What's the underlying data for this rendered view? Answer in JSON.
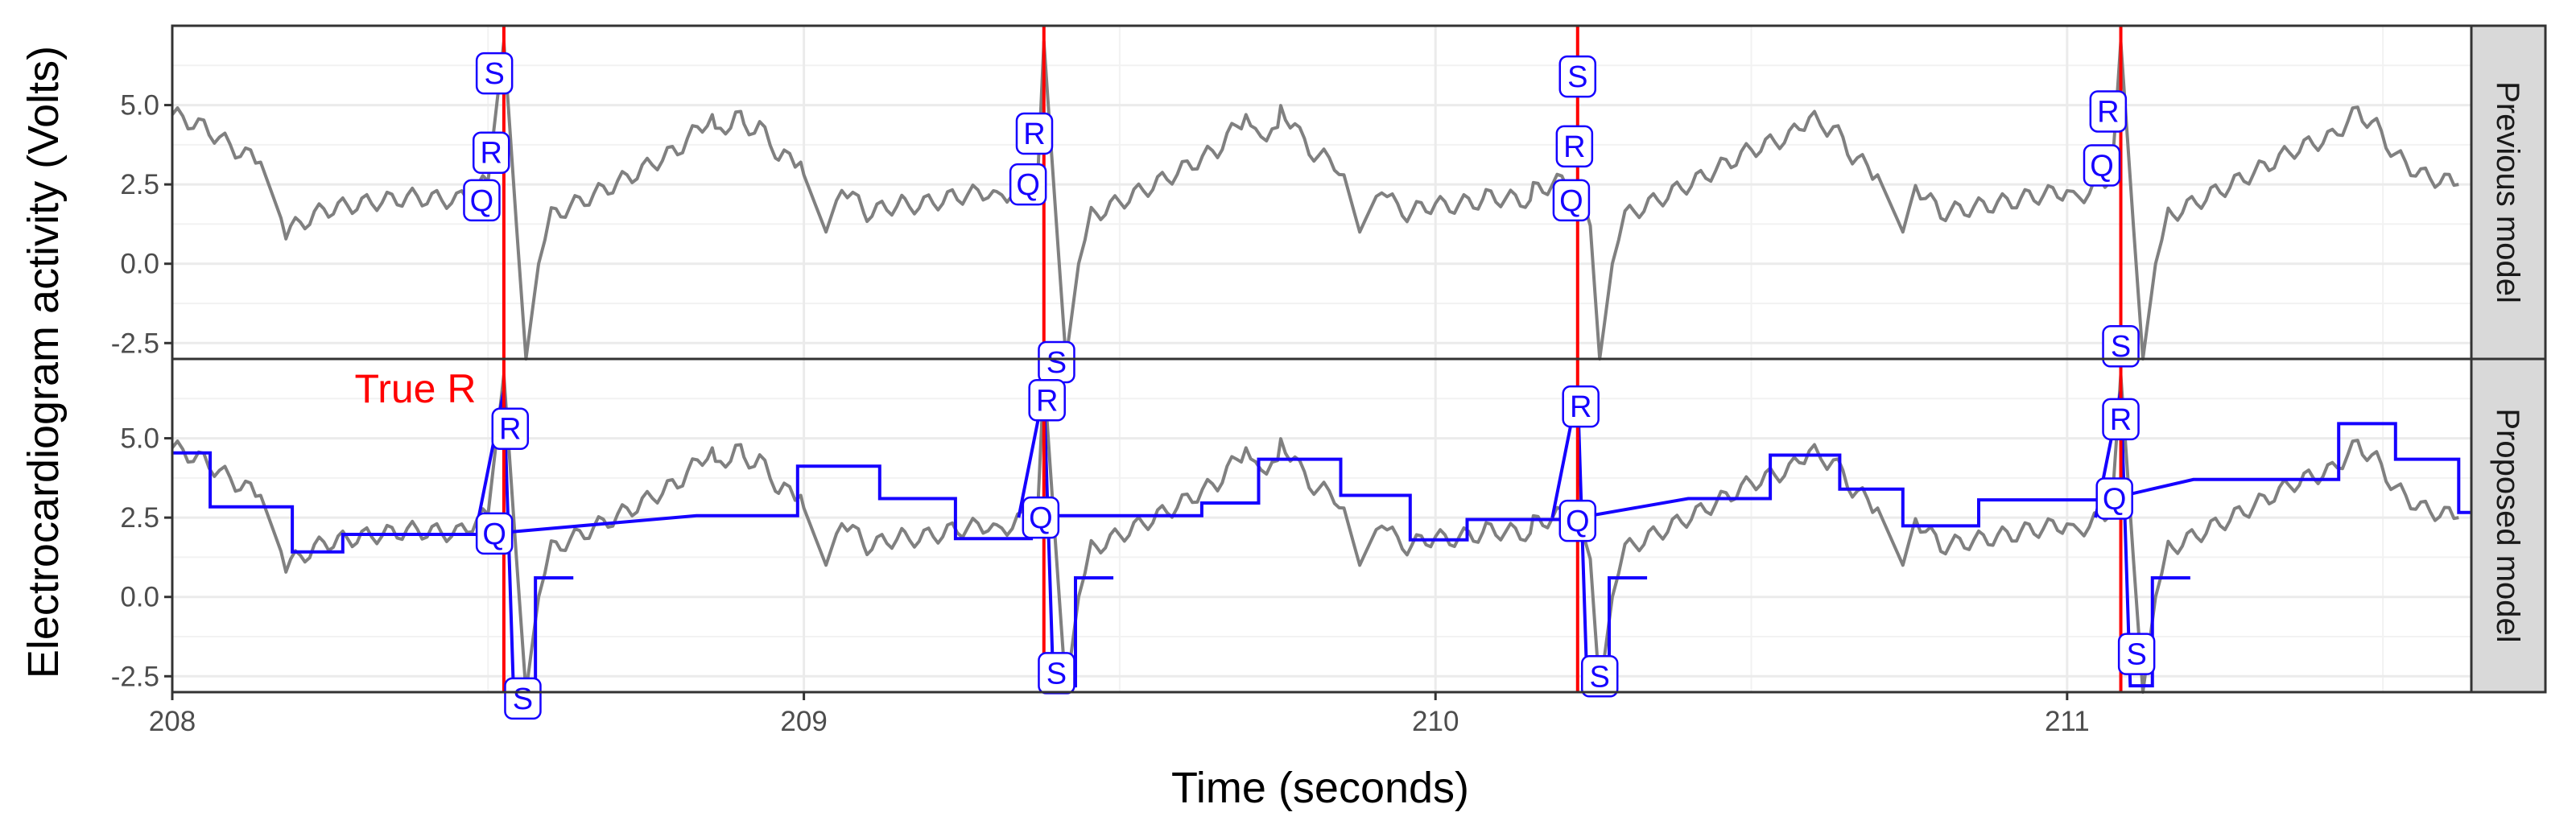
{
  "chart_data": {
    "type": "line",
    "title": "",
    "xlabel": "Time (seconds)",
    "ylabel": "Electrocardiogram activity (Volts)",
    "xlim": [
      208.0,
      211.64
    ],
    "ylim": [
      -3.0,
      7.5
    ],
    "x_ticks": [
      208,
      209,
      210,
      211
    ],
    "y_ticks": [
      -2.5,
      0.0,
      2.5,
      5.0
    ],
    "y_tick_labels": [
      "-2.5",
      "0.0",
      "2.5",
      "5.0"
    ],
    "grid": true,
    "facets": [
      "Previous model",
      "Proposed model"
    ],
    "true_r_label": "True R",
    "colors": {
      "signal": "#808080",
      "true_r": "#ff0000",
      "model": "#1500ff",
      "strip": "#d9d9d9"
    },
    "beats": [
      {
        "start": 207.7,
        "r": 208.525,
        "end": 209.375,
        "points": [
          [
            208.0,
            4.7
          ],
          [
            208.05,
            4.3
          ],
          [
            208.1,
            3.6
          ],
          [
            208.14,
            3.2
          ],
          [
            208.18,
            1.0
          ],
          [
            208.24,
            1.7
          ],
          [
            208.3,
            1.9
          ],
          [
            208.38,
            2.1
          ],
          [
            208.45,
            2.0
          ],
          [
            208.5,
            2.6
          ],
          [
            208.525,
            7.0
          ],
          [
            208.545,
            1.2
          ],
          [
            208.56,
            -3.0
          ],
          [
            208.58,
            0.0
          ],
          [
            208.6,
            1.5
          ],
          [
            208.66,
            2.1
          ],
          [
            208.72,
            2.7
          ],
          [
            208.8,
            3.6
          ],
          [
            208.86,
            4.0
          ],
          [
            208.9,
            4.8
          ],
          [
            208.93,
            4.3
          ],
          [
            208.96,
            3.4
          ],
          [
            209.0,
            2.8
          ],
          [
            209.06,
            2.5
          ],
          [
            209.1,
            1.6
          ],
          [
            209.16,
            1.8
          ],
          [
            209.22,
            2.0
          ],
          [
            209.3,
            2.3
          ],
          [
            209.37,
            2.6
          ]
        ],
        "model": [
          [
            208.525,
            4.54
          ],
          [
            208.6,
            4.54
          ],
          [
            208.6,
            2.84
          ],
          [
            208.72,
            2.84
          ],
          [
            208.72,
            1.42
          ],
          [
            208.78,
            1.42
          ],
          [
            208.78,
            1.97
          ],
          [
            208.988,
            1.97
          ],
          [
            208.988,
            2.2
          ]
        ]
      }
    ],
    "segments": {
      "proposed": [
        [
          208.0,
          208.06,
          4.54
        ],
        [
          208.06,
          208.19,
          2.84
        ],
        [
          208.19,
          208.27,
          1.42
        ],
        [
          208.27,
          208.49,
          1.97
        ],
        [
          208.83,
          208.99,
          2.56
        ],
        [
          208.99,
          209.12,
          4.12
        ],
        [
          209.12,
          209.24,
          3.1
        ],
        [
          209.24,
          209.36,
          1.84
        ],
        [
          209.36,
          209.37,
          2.56
        ],
        [
          209.55,
          209.63,
          2.56
        ],
        [
          209.63,
          209.72,
          2.96
        ],
        [
          209.72,
          209.85,
          4.34
        ],
        [
          209.85,
          209.96,
          3.2
        ],
        [
          209.96,
          210.05,
          1.8
        ],
        [
          210.05,
          210.21,
          2.44
        ],
        [
          210.4,
          210.53,
          3.1
        ],
        [
          210.53,
          210.64,
          4.47
        ],
        [
          210.64,
          210.74,
          3.4
        ],
        [
          210.74,
          210.86,
          2.24
        ],
        [
          210.86,
          211.06,
          3.06
        ],
        [
          211.2,
          211.24,
          3.7
        ],
        [
          211.24,
          211.43,
          3.7
        ],
        [
          211.43,
          211.52,
          5.46
        ],
        [
          211.52,
          211.62,
          4.34
        ],
        [
          211.62,
          211.64,
          2.66
        ]
      ]
    },
    "annotations": {
      "previous": [
        {
          "label": "S",
          "x": 208.51,
          "y": 6.0
        },
        {
          "label": "R",
          "x": 208.505,
          "y": 3.5
        },
        {
          "label": "Q",
          "x": 208.49,
          "y": 2.0
        },
        {
          "label": "R",
          "x": 209.365,
          "y": 4.1
        },
        {
          "label": "Q",
          "x": 209.355,
          "y": 2.5
        },
        {
          "label": "S",
          "x": 209.4,
          "y": -3.1
        },
        {
          "label": "S",
          "x": 210.225,
          "y": 5.9
        },
        {
          "label": "R",
          "x": 210.22,
          "y": 3.7
        },
        {
          "label": "Q",
          "x": 210.215,
          "y": 2.0
        },
        {
          "label": "R",
          "x": 211.065,
          "y": 4.8
        },
        {
          "label": "Q",
          "x": 211.055,
          "y": 3.1
        },
        {
          "label": "S",
          "x": 211.085,
          "y": -2.6
        }
      ],
      "proposed": [
        {
          "label": "R",
          "x": 208.535,
          "y": 5.3
        },
        {
          "label": "Q",
          "x": 208.51,
          "y": 2.0
        },
        {
          "label": "S",
          "x": 208.555,
          "y": -3.2
        },
        {
          "label": "R",
          "x": 209.385,
          "y": 6.2
        },
        {
          "label": "Q",
          "x": 209.375,
          "y": 2.5
        },
        {
          "label": "S",
          "x": 209.4,
          "y": -2.4
        },
        {
          "label": "R",
          "x": 210.23,
          "y": 6.0
        },
        {
          "label": "Q",
          "x": 210.225,
          "y": 2.4
        },
        {
          "label": "S",
          "x": 210.26,
          "y": -2.5
        },
        {
          "label": "R",
          "x": 211.085,
          "y": 5.6
        },
        {
          "label": "Q",
          "x": 211.075,
          "y": 3.1
        },
        {
          "label": "S",
          "x": 211.11,
          "y": -1.8
        }
      ]
    },
    "true_r_times": [
      208.525,
      209.38,
      210.225,
      211.085
    ]
  }
}
